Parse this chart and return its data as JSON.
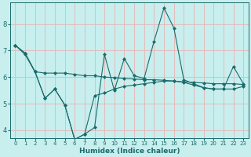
{
  "xlabel": "Humidex (Indice chaleur)",
  "bg_color": "#c8eeee",
  "line_color": "#1a6b6b",
  "grid_color_v": "#e8b4b4",
  "grid_color_h": "#e8b4b4",
  "xlim": [
    -0.5,
    23.5
  ],
  "ylim": [
    3.7,
    8.8
  ],
  "yticks": [
    4,
    5,
    6,
    7,
    8
  ],
  "xticks": [
    0,
    1,
    2,
    3,
    4,
    5,
    6,
    7,
    8,
    9,
    10,
    11,
    12,
    13,
    14,
    15,
    16,
    17,
    18,
    19,
    20,
    21,
    22,
    23
  ],
  "line1_x": [
    0,
    1,
    2,
    3,
    4,
    5,
    6,
    7,
    8,
    9,
    10,
    11,
    12,
    13,
    14,
    15,
    16,
    17,
    18,
    19,
    20,
    21,
    22,
    23
  ],
  "line1_y": [
    7.2,
    6.9,
    6.2,
    5.2,
    5.55,
    4.95,
    3.65,
    3.85,
    4.1,
    6.85,
    5.5,
    6.7,
    6.05,
    5.95,
    7.35,
    8.6,
    7.85,
    5.9,
    5.75,
    5.6,
    5.55,
    5.55,
    6.4,
    5.75
  ],
  "line2_x": [
    0,
    1,
    2,
    3,
    4,
    5,
    6,
    7,
    8,
    9,
    10,
    11,
    12,
    13,
    14,
    15,
    16,
    17,
    18,
    19,
    20,
    21,
    22,
    23
  ],
  "line2_y": [
    7.2,
    6.9,
    6.2,
    5.2,
    5.55,
    4.95,
    3.65,
    3.85,
    5.3,
    5.4,
    5.55,
    5.65,
    5.7,
    5.75,
    5.8,
    5.85,
    5.85,
    5.8,
    5.7,
    5.6,
    5.55,
    5.55,
    5.55,
    5.65
  ],
  "line3_x": [
    0,
    1,
    2,
    3,
    4,
    5,
    6,
    7,
    8,
    9,
    10,
    11,
    12,
    13,
    14,
    15,
    16,
    17,
    18,
    19,
    20,
    21,
    22,
    23
  ],
  "line3_y": [
    7.2,
    6.85,
    6.2,
    6.15,
    6.15,
    6.15,
    6.1,
    6.05,
    6.05,
    6.0,
    5.98,
    5.95,
    5.93,
    5.9,
    5.9,
    5.88,
    5.85,
    5.82,
    5.8,
    5.78,
    5.75,
    5.75,
    5.75,
    5.72
  ]
}
